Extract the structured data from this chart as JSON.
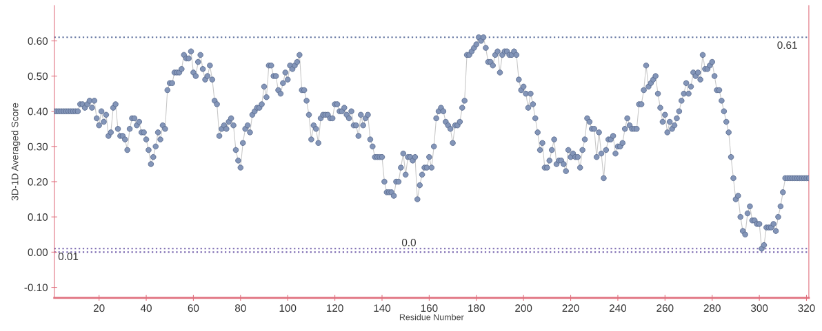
{
  "chart_data": {
    "type": "line",
    "xlabel": "Residue Number",
    "ylabel": "3D-1D Averaged Score",
    "x": [
      1,
      2,
      3,
      4,
      5,
      6,
      7,
      8,
      9,
      10,
      11,
      12,
      13,
      14,
      15,
      16,
      17,
      18,
      19,
      20,
      21,
      22,
      23,
      24,
      25,
      26,
      27,
      28,
      29,
      30,
      31,
      32,
      33,
      34,
      35,
      36,
      37,
      38,
      39,
      40,
      41,
      42,
      43,
      44,
      45,
      46,
      47,
      48,
      49,
      50,
      51,
      52,
      53,
      54,
      55,
      56,
      57,
      58,
      59,
      60,
      61,
      62,
      63,
      64,
      65,
      66,
      67,
      68,
      69,
      70,
      71,
      72,
      73,
      74,
      75,
      76,
      77,
      78,
      79,
      80,
      81,
      82,
      83,
      84,
      85,
      86,
      87,
      88,
      89,
      90,
      91,
      92,
      93,
      94,
      95,
      96,
      97,
      98,
      99,
      100,
      101,
      102,
      103,
      104,
      105,
      106,
      107,
      108,
      109,
      110,
      111,
      112,
      113,
      114,
      115,
      116,
      117,
      118,
      119,
      120,
      121,
      122,
      123,
      124,
      125,
      126,
      127,
      128,
      129,
      130,
      131,
      132,
      133,
      134,
      135,
      136,
      137,
      138,
      139,
      140,
      141,
      142,
      143,
      144,
      145,
      146,
      147,
      148,
      149,
      150,
      151,
      152,
      153,
      154,
      155,
      156,
      157,
      158,
      159,
      160,
      161,
      162,
      163,
      164,
      165,
      166,
      167,
      168,
      169,
      170,
      171,
      172,
      173,
      174,
      175,
      176,
      177,
      178,
      179,
      180,
      181,
      182,
      183,
      184,
      185,
      186,
      187,
      188,
      189,
      190,
      191,
      192,
      193,
      194,
      195,
      196,
      197,
      198,
      199,
      200,
      201,
      202,
      203,
      204,
      205,
      206,
      207,
      208,
      209,
      210,
      211,
      212,
      213,
      214,
      215,
      216,
      217,
      218,
      219,
      220,
      221,
      222,
      223,
      224,
      225,
      226,
      227,
      228,
      229,
      230,
      231,
      232,
      233,
      234,
      235,
      236,
      237,
      238,
      239,
      240,
      241,
      242,
      243,
      244,
      245,
      246,
      247,
      248,
      249,
      250,
      251,
      252,
      253,
      254,
      255,
      256,
      257,
      258,
      259,
      260,
      261,
      262,
      263,
      264,
      265,
      266,
      267,
      268,
      269,
      270,
      271,
      272,
      273,
      274,
      275,
      276,
      277,
      278,
      279,
      280,
      281,
      282,
      283,
      284,
      285,
      286,
      287,
      288,
      289,
      290,
      291,
      292,
      293,
      294,
      295,
      296,
      297,
      298,
      299,
      300,
      301,
      302,
      303,
      304,
      305,
      306,
      307,
      308,
      309,
      310,
      311,
      312,
      313,
      314,
      315,
      316,
      317,
      318,
      319,
      320,
      321
    ],
    "series": [
      {
        "color": "#8395b8",
        "values": [
          0.4,
          0.4,
          0.4,
          0.4,
          0.4,
          0.4,
          0.4,
          0.4,
          0.4,
          0.4,
          0.4,
          0.42,
          0.42,
          0.41,
          0.42,
          0.43,
          0.41,
          0.43,
          0.38,
          0.36,
          0.4,
          0.37,
          0.39,
          0.33,
          0.34,
          0.41,
          0.42,
          0.35,
          0.33,
          0.33,
          0.32,
          0.29,
          0.35,
          0.38,
          0.38,
          0.36,
          0.37,
          0.34,
          0.34,
          0.32,
          0.29,
          0.25,
          0.27,
          0.3,
          0.34,
          0.32,
          0.36,
          0.35,
          0.46,
          0.48,
          0.48,
          0.51,
          0.51,
          0.51,
          0.52,
          0.56,
          0.55,
          0.55,
          0.57,
          0.51,
          0.5,
          0.54,
          0.56,
          0.52,
          0.49,
          0.5,
          0.53,
          0.49,
          0.43,
          0.42,
          0.33,
          0.35,
          0.36,
          0.35,
          0.37,
          0.38,
          0.36,
          0.29,
          0.26,
          0.24,
          0.31,
          0.35,
          0.36,
          0.34,
          0.39,
          0.4,
          0.41,
          0.41,
          0.42,
          0.47,
          0.44,
          0.53,
          0.53,
          0.5,
          0.5,
          0.46,
          0.45,
          0.48,
          0.51,
          0.49,
          0.53,
          0.52,
          0.53,
          0.54,
          0.56,
          0.46,
          0.46,
          0.43,
          0.39,
          0.32,
          0.36,
          0.35,
          0.31,
          0.38,
          0.39,
          0.39,
          0.39,
          0.38,
          0.38,
          0.42,
          0.42,
          0.4,
          0.4,
          0.41,
          0.39,
          0.38,
          0.4,
          0.36,
          0.36,
          0.33,
          0.39,
          0.36,
          0.38,
          0.39,
          0.32,
          0.3,
          0.27,
          0.27,
          0.27,
          0.27,
          0.2,
          0.17,
          0.17,
          0.17,
          0.16,
          0.2,
          0.2,
          0.24,
          0.28,
          0.22,
          0.27,
          0.27,
          0.26,
          0.27,
          0.15,
          0.19,
          0.22,
          0.24,
          0.24,
          0.27,
          0.24,
          0.3,
          0.38,
          0.4,
          0.41,
          0.4,
          0.37,
          0.36,
          0.35,
          0.31,
          0.36,
          0.36,
          0.37,
          0.41,
          0.43,
          0.56,
          0.56,
          0.57,
          0.58,
          0.59,
          0.61,
          0.6,
          0.61,
          0.58,
          0.54,
          0.54,
          0.53,
          0.56,
          0.57,
          0.51,
          0.56,
          0.57,
          0.57,
          0.56,
          0.56,
          0.57,
          0.56,
          0.49,
          0.46,
          0.47,
          0.45,
          0.41,
          0.45,
          0.42,
          0.38,
          0.34,
          0.29,
          0.31,
          0.24,
          0.24,
          0.26,
          0.29,
          0.32,
          0.25,
          0.26,
          0.26,
          0.25,
          0.23,
          0.29,
          0.27,
          0.28,
          0.27,
          0.27,
          0.24,
          0.29,
          0.32,
          0.38,
          0.37,
          0.35,
          0.35,
          0.27,
          0.34,
          0.28,
          0.21,
          0.29,
          0.32,
          0.32,
          0.33,
          0.28,
          0.3,
          0.3,
          0.31,
          0.35,
          0.38,
          0.36,
          0.35,
          0.35,
          0.35,
          0.42,
          0.42,
          0.46,
          0.53,
          0.47,
          0.48,
          0.49,
          0.5,
          0.45,
          0.41,
          0.37,
          0.39,
          0.34,
          0.37,
          0.35,
          0.36,
          0.38,
          0.4,
          0.43,
          0.45,
          0.48,
          0.45,
          0.47,
          0.51,
          0.5,
          0.51,
          0.49,
          0.56,
          0.52,
          0.52,
          0.53,
          0.54,
          0.5,
          0.46,
          0.46,
          0.43,
          0.4,
          0.37,
          0.34,
          0.27,
          0.21,
          0.15,
          0.16,
          0.1,
          0.06,
          0.05,
          0.11,
          0.13,
          0.09,
          0.09,
          0.08,
          0.08,
          0.01,
          0.02,
          0.07,
          0.07,
          0.07,
          0.08,
          0.06,
          0.1,
          0.13,
          0.17,
          0.21,
          0.21,
          0.21,
          0.21,
          0.21,
          0.21,
          0.21,
          0.21,
          0.21,
          0.21,
          0.21
        ]
      }
    ],
    "xlim": [
      1,
      321
    ],
    "ylim": [
      -0.13,
      0.7
    ],
    "xticks": [
      20,
      40,
      60,
      80,
      100,
      120,
      140,
      160,
      180,
      200,
      220,
      240,
      260,
      280,
      300,
      320
    ],
    "yticks": [
      {
        "value": -0.1,
        "label": "-0.10"
      },
      {
        "value": 0.0,
        "label": "0.00"
      },
      {
        "value": 0.1,
        "label": "0.10"
      },
      {
        "value": 0.2,
        "label": "0.20"
      },
      {
        "value": 0.3,
        "label": "0.30"
      },
      {
        "value": 0.4,
        "label": "0.40"
      },
      {
        "value": 0.5,
        "label": "0.50"
      },
      {
        "value": 0.6,
        "label": "0.60"
      }
    ],
    "ref_lines": [
      {
        "axis": "y",
        "value": 0.61,
        "label": "0.61",
        "color": "#7080a8",
        "line_style": "dotted"
      },
      {
        "axis": "y",
        "value": 0.0,
        "label": "0.0",
        "color": "#7a68b0",
        "line_style": "dotted"
      },
      {
        "axis": "y",
        "value": 0.01,
        "label": "0.01",
        "color": "#7a68b0",
        "line_style": "dotted"
      }
    ],
    "marker": "circle",
    "line_style": "solid",
    "grid": false,
    "legend": false
  }
}
